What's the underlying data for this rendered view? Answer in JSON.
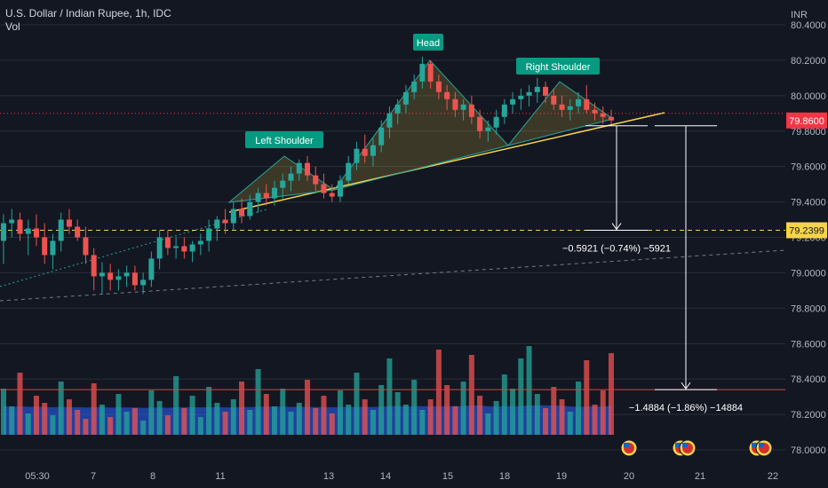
{
  "header": {
    "symbol_line": "U.S. Dollar / Indian Rupee, 1h, IDC",
    "volume_label": "Vol",
    "currency": "INR"
  },
  "chart_data": {
    "type": "candlestick",
    "title": "U.S. Dollar / Indian Rupee, 1h, IDC",
    "ylabel": "INR",
    "ylim": [
      77.98,
      80.42
    ],
    "y_ticks": [
      {
        "value": 80.4,
        "label": "80.4000"
      },
      {
        "value": 80.2,
        "label": "80.2000"
      },
      {
        "value": 80.0,
        "label": "80.0000"
      },
      {
        "value": 79.8,
        "label": "79.8000"
      },
      {
        "value": 79.6,
        "label": "79.6000"
      },
      {
        "value": 79.4,
        "label": "79.4000"
      },
      {
        "value": 79.2,
        "label": "79.2000"
      },
      {
        "value": 79.0,
        "label": "79.0000"
      },
      {
        "value": 78.8,
        "label": "78.8000"
      },
      {
        "value": 78.6,
        "label": "78.6000"
      },
      {
        "value": 78.4,
        "label": "78.4000"
      },
      {
        "value": 78.2,
        "label": "78.2000"
      },
      {
        "value": 78.0,
        "label": "78.0000"
      }
    ],
    "x_labels": [
      "05:30",
      "7",
      "8",
      "11",
      "13",
      "14",
      "15",
      "18",
      "19",
      "20",
      "21",
      "22"
    ],
    "price_badges": [
      {
        "value": 79.86,
        "label": "79.8600",
        "color": "#f23645"
      },
      {
        "value": 79.2399,
        "label": "79.2399",
        "color": "#f7d34a"
      }
    ],
    "pattern_labels": [
      {
        "text": "Left Shoulder",
        "value": 79.66
      },
      {
        "text": "Head",
        "value": 80.18
      },
      {
        "text": "Right Shoulder",
        "value": 80.08
      }
    ],
    "measurements": [
      {
        "text": "−0.5921 (−0.74%) −5921",
        "from": 79.83,
        "to": 79.2399
      },
      {
        "text": "−1.4884 (−1.86%) −14884",
        "from": 79.83,
        "to": 78.34
      }
    ],
    "levels": [
      {
        "value": 79.2399,
        "color": "#f7d34a",
        "style": "dashed"
      },
      {
        "value": 78.34,
        "color": "#f23645",
        "style": "solid"
      },
      {
        "value": 79.9,
        "color": "#f23645",
        "style": "dotted"
      }
    ],
    "candles": [
      [
        79.18,
        79.33,
        79.05,
        79.28
      ],
      [
        79.28,
        79.36,
        79.2,
        79.3
      ],
      [
        79.3,
        79.34,
        79.18,
        79.22
      ],
      [
        79.22,
        79.3,
        79.1,
        79.25
      ],
      [
        79.25,
        79.33,
        79.15,
        79.2
      ],
      [
        79.2,
        79.28,
        79.05,
        79.1
      ],
      [
        79.1,
        79.22,
        79.02,
        79.18
      ],
      [
        79.18,
        79.34,
        79.12,
        79.3
      ],
      [
        79.3,
        79.36,
        79.22,
        79.26
      ],
      [
        79.26,
        79.3,
        79.18,
        79.2
      ],
      [
        79.2,
        79.26,
        79.05,
        79.1
      ],
      [
        79.1,
        79.14,
        78.9,
        78.98
      ],
      [
        78.98,
        79.06,
        78.88,
        79.0
      ],
      [
        79.0,
        79.05,
        78.9,
        78.96
      ],
      [
        78.96,
        79.02,
        78.9,
        78.98
      ],
      [
        78.98,
        79.04,
        78.92,
        79.0
      ],
      [
        79.0,
        79.04,
        78.9,
        78.93
      ],
      [
        78.93,
        79.0,
        78.88,
        78.96
      ],
      [
        78.96,
        79.12,
        78.92,
        79.08
      ],
      [
        79.08,
        79.24,
        79.02,
        79.2
      ],
      [
        79.2,
        79.24,
        79.1,
        79.14
      ],
      [
        79.14,
        79.2,
        79.08,
        79.15
      ],
      [
        79.15,
        79.2,
        79.08,
        79.12
      ],
      [
        79.12,
        79.18,
        79.06,
        79.16
      ],
      [
        79.16,
        79.22,
        79.1,
        79.18
      ],
      [
        79.18,
        79.3,
        79.12,
        79.25
      ],
      [
        79.25,
        79.32,
        79.18,
        79.3
      ],
      [
        79.3,
        79.36,
        79.22,
        79.28
      ],
      [
        79.28,
        79.4,
        79.24,
        79.36
      ],
      [
        79.36,
        79.42,
        79.28,
        79.32
      ],
      [
        79.32,
        79.44,
        79.3,
        79.4
      ],
      [
        79.4,
        79.48,
        79.34,
        79.45
      ],
      [
        79.45,
        79.5,
        79.38,
        79.42
      ],
      [
        79.42,
        79.52,
        79.38,
        79.48
      ],
      [
        79.48,
        79.56,
        79.42,
        79.52
      ],
      [
        79.52,
        79.6,
        79.46,
        79.56
      ],
      [
        79.56,
        79.64,
        79.52,
        79.62
      ],
      [
        79.62,
        79.66,
        79.52,
        79.55
      ],
      [
        79.55,
        79.6,
        79.46,
        79.5
      ],
      [
        79.5,
        79.56,
        79.42,
        79.45
      ],
      [
        79.45,
        79.5,
        79.4,
        79.43
      ],
      [
        79.43,
        79.55,
        79.4,
        79.52
      ],
      [
        79.52,
        79.66,
        79.5,
        79.62
      ],
      [
        79.62,
        79.74,
        79.58,
        79.7
      ],
      [
        79.7,
        79.78,
        79.62,
        79.66
      ],
      [
        79.66,
        79.76,
        79.6,
        79.72
      ],
      [
        79.72,
        79.86,
        79.68,
        79.82
      ],
      [
        79.82,
        79.94,
        79.76,
        79.9
      ],
      [
        79.9,
        79.98,
        79.84,
        79.95
      ],
      [
        79.95,
        80.06,
        79.9,
        80.02
      ],
      [
        80.02,
        80.12,
        79.98,
        80.08
      ],
      [
        80.08,
        80.22,
        80.04,
        80.18
      ],
      [
        80.18,
        80.2,
        80.04,
        80.08
      ],
      [
        80.08,
        80.12,
        79.98,
        80.02
      ],
      [
        80.02,
        80.06,
        79.92,
        79.98
      ],
      [
        79.98,
        80.02,
        79.88,
        79.92
      ],
      [
        79.92,
        79.98,
        79.86,
        79.95
      ],
      [
        79.95,
        80.0,
        79.84,
        79.88
      ],
      [
        79.88,
        79.92,
        79.76,
        79.8
      ],
      [
        79.8,
        79.86,
        79.74,
        79.82
      ],
      [
        79.82,
        79.92,
        79.78,
        79.88
      ],
      [
        79.88,
        79.98,
        79.84,
        79.95
      ],
      [
        79.95,
        80.02,
        79.9,
        79.98
      ],
      [
        79.98,
        80.04,
        79.92,
        80.0
      ],
      [
        80.0,
        80.06,
        79.94,
        80.02
      ],
      [
        80.02,
        80.1,
        79.96,
        80.05
      ],
      [
        80.05,
        80.08,
        79.96,
        80.0
      ],
      [
        80.0,
        80.04,
        79.92,
        79.95
      ],
      [
        79.95,
        80.0,
        79.88,
        79.92
      ],
      [
        79.92,
        79.98,
        79.86,
        79.94
      ],
      [
        79.94,
        80.02,
        79.9,
        79.98
      ],
      [
        79.98,
        80.06,
        79.9,
        79.92
      ],
      [
        79.92,
        79.96,
        79.86,
        79.9
      ],
      [
        79.9,
        79.94,
        79.84,
        79.88
      ],
      [
        79.88,
        79.92,
        79.84,
        79.86
      ]
    ],
    "volumes": [
      0.52,
      0.32,
      0.7,
      0.24,
      0.44,
      0.36,
      0.22,
      0.6,
      0.4,
      0.28,
      0.18,
      0.58,
      0.34,
      0.2,
      0.46,
      0.26,
      0.3,
      0.16,
      0.5,
      0.38,
      0.22,
      0.66,
      0.3,
      0.44,
      0.2,
      0.54,
      0.36,
      0.26,
      0.4,
      0.6,
      0.28,
      0.74,
      0.46,
      0.32,
      0.52,
      0.26,
      0.36,
      0.62,
      0.3,
      0.44,
      0.24,
      0.5,
      0.34,
      0.7,
      0.4,
      0.28,
      0.56,
      0.86,
      0.48,
      0.34,
      0.62,
      0.28,
      0.4,
      0.96,
      0.56,
      0.32,
      0.6,
      0.9,
      0.44,
      0.24,
      0.38,
      0.68,
      0.52,
      0.86,
      1.0,
      0.46,
      0.3,
      0.54,
      0.4,
      0.26,
      0.6,
      0.84,
      0.34,
      0.5,
      0.92
    ]
  }
}
